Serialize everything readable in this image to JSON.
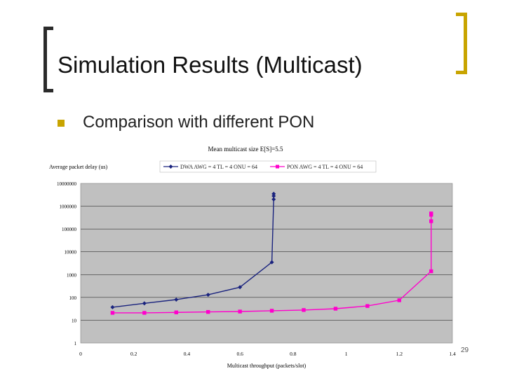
{
  "slide": {
    "title": "Simulation Results (Multicast)",
    "bullet": "Comparison with different PON",
    "page_number": "29"
  },
  "colors": {
    "bracket_left": "#2b2b2b",
    "bracket_right": "#c8a400",
    "bullet": "#c8a400",
    "plot_bg": "#c0c0c0",
    "series_1": "#1a237e",
    "series_2": "#ff00cc"
  },
  "chart_data": {
    "type": "line",
    "title": "Mean multicast size E[S]=5.5",
    "xlabel": "Multicast throughput (packets/slot)",
    "ylabel": "Average packet delay (us)",
    "x_scale": "linear",
    "y_scale": "log",
    "xlim": [
      0,
      1.4
    ],
    "ylim": [
      1,
      10000000
    ],
    "x_ticks": [
      "0",
      "0.2",
      "0.4",
      "0.6",
      "0.8",
      "1",
      "1.2",
      "1.4"
    ],
    "y_ticks": [
      "1",
      "10",
      "100",
      "1000",
      "10000",
      "100000",
      "1000000",
      "10000000"
    ],
    "grid": true,
    "legend_position": "top",
    "series": [
      {
        "name": "DWA AWG = 4 TL = 4 ONU = 64",
        "marker": "diamond",
        "points": [
          [
            0.12,
            37
          ],
          [
            0.24,
            55
          ],
          [
            0.36,
            80
          ],
          [
            0.48,
            130
          ],
          [
            0.6,
            280
          ],
          [
            0.72,
            3500
          ],
          [
            0.727,
            2000000
          ],
          [
            0.727,
            2800000
          ],
          [
            0.727,
            3500000
          ]
        ]
      },
      {
        "name": "PON AWG = 4 TL = 4 ONU = 64",
        "marker": "square",
        "points": [
          [
            0.12,
            21
          ],
          [
            0.24,
            21
          ],
          [
            0.36,
            22
          ],
          [
            0.48,
            23
          ],
          [
            0.6,
            24
          ],
          [
            0.72,
            26
          ],
          [
            0.84,
            28
          ],
          [
            0.96,
            32
          ],
          [
            1.08,
            42
          ],
          [
            1.2,
            75
          ],
          [
            1.32,
            1400
          ],
          [
            1.32,
            220000
          ],
          [
            1.32,
            420000
          ],
          [
            1.32,
            480000
          ]
        ]
      }
    ]
  }
}
